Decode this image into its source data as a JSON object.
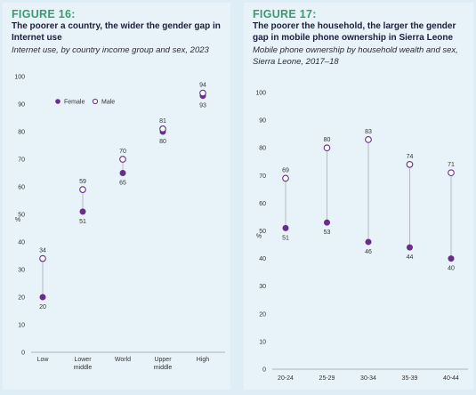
{
  "chart_data": [
    {
      "type": "scatter",
      "figure_label": "FIGURE 16:",
      "title": "The poorer a country, the wider the gender gap in Internet use",
      "subtitle": "Internet use, by country income group and sex, 2023",
      "ylabel": "%",
      "ylim": [
        0,
        100
      ],
      "yticks": [
        0,
        10,
        20,
        30,
        40,
        50,
        60,
        70,
        80,
        90,
        100
      ],
      "categories": [
        [
          "Low"
        ],
        [
          "Lower",
          "middle"
        ],
        [
          "World"
        ],
        [
          "Upper",
          "middle"
        ],
        [
          "High"
        ]
      ],
      "legend": "top-left",
      "series": [
        {
          "name": "Female",
          "marker": "filled",
          "values": [
            20,
            51,
            65,
            80,
            93
          ]
        },
        {
          "name": "Male",
          "marker": "hollow",
          "values": [
            34,
            59,
            70,
            81,
            94
          ]
        }
      ],
      "colors": {
        "female": "#6a2c8f",
        "male": "#6a2c8f",
        "connector": "#b9b9c4"
      }
    },
    {
      "type": "scatter",
      "figure_label": "FIGURE 17:",
      "title": "The poorer the household, the larger the gender gap in mobile phone ownership in Sierra Leone",
      "subtitle": "Mobile phone ownership by household wealth and sex, Sierra Leone, 2017–18",
      "ylabel": "%",
      "ylim": [
        0,
        100
      ],
      "yticks": [
        0,
        10,
        20,
        30,
        40,
        50,
        60,
        70,
        80,
        90,
        100
      ],
      "categories": [
        [
          "20-24"
        ],
        [
          "25-29"
        ],
        [
          "30-34"
        ],
        [
          "35-39"
        ],
        [
          "40-44"
        ]
      ],
      "series": [
        {
          "name": "Female",
          "marker": "filled",
          "values": [
            51,
            53,
            46,
            44,
            40
          ]
        },
        {
          "name": "Male",
          "marker": "hollow",
          "values": [
            69,
            80,
            83,
            74,
            71
          ]
        }
      ],
      "colors": {
        "female": "#6a2c8f",
        "male": "#6a2c8f",
        "connector": "#b9b9c4"
      }
    }
  ]
}
